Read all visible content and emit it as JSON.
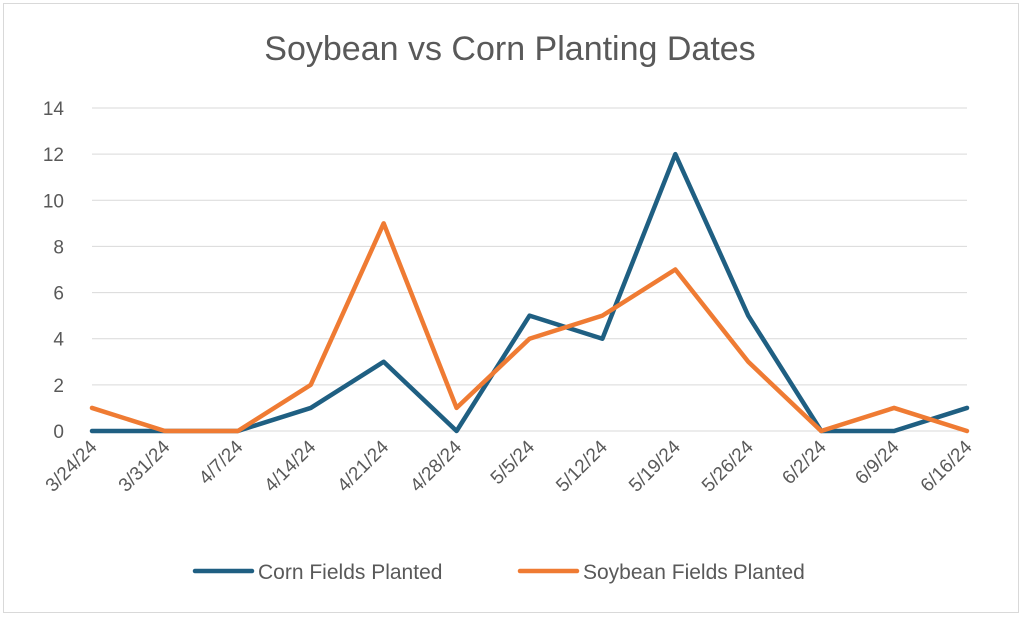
{
  "chart_data": {
    "type": "line",
    "title": "Soybean vs Corn Planting Dates",
    "xlabel": "",
    "ylabel": "",
    "categories": [
      "3/24/24",
      "3/31/24",
      "4/7/24",
      "4/14/24",
      "4/21/24",
      "4/28/24",
      "5/5/24",
      "5/12/24",
      "5/19/24",
      "5/26/24",
      "6/2/24",
      "6/9/24",
      "6/16/24"
    ],
    "series": [
      {
        "name": "Corn Fields Planted",
        "color": "#1f5f82",
        "values": [
          0,
          0,
          0,
          1,
          3,
          0,
          5,
          4,
          12,
          5,
          0,
          0,
          1
        ]
      },
      {
        "name": "Soybean Fields Planted",
        "color": "#ef7b33",
        "values": [
          1,
          0,
          0,
          2,
          9,
          1,
          4,
          5,
          7,
          3,
          0,
          1,
          0
        ]
      }
    ],
    "ylim": [
      0,
      14
    ],
    "yticks": [
      0,
      2,
      4,
      6,
      8,
      10,
      12,
      14
    ],
    "grid": true,
    "legend_position": "bottom"
  }
}
